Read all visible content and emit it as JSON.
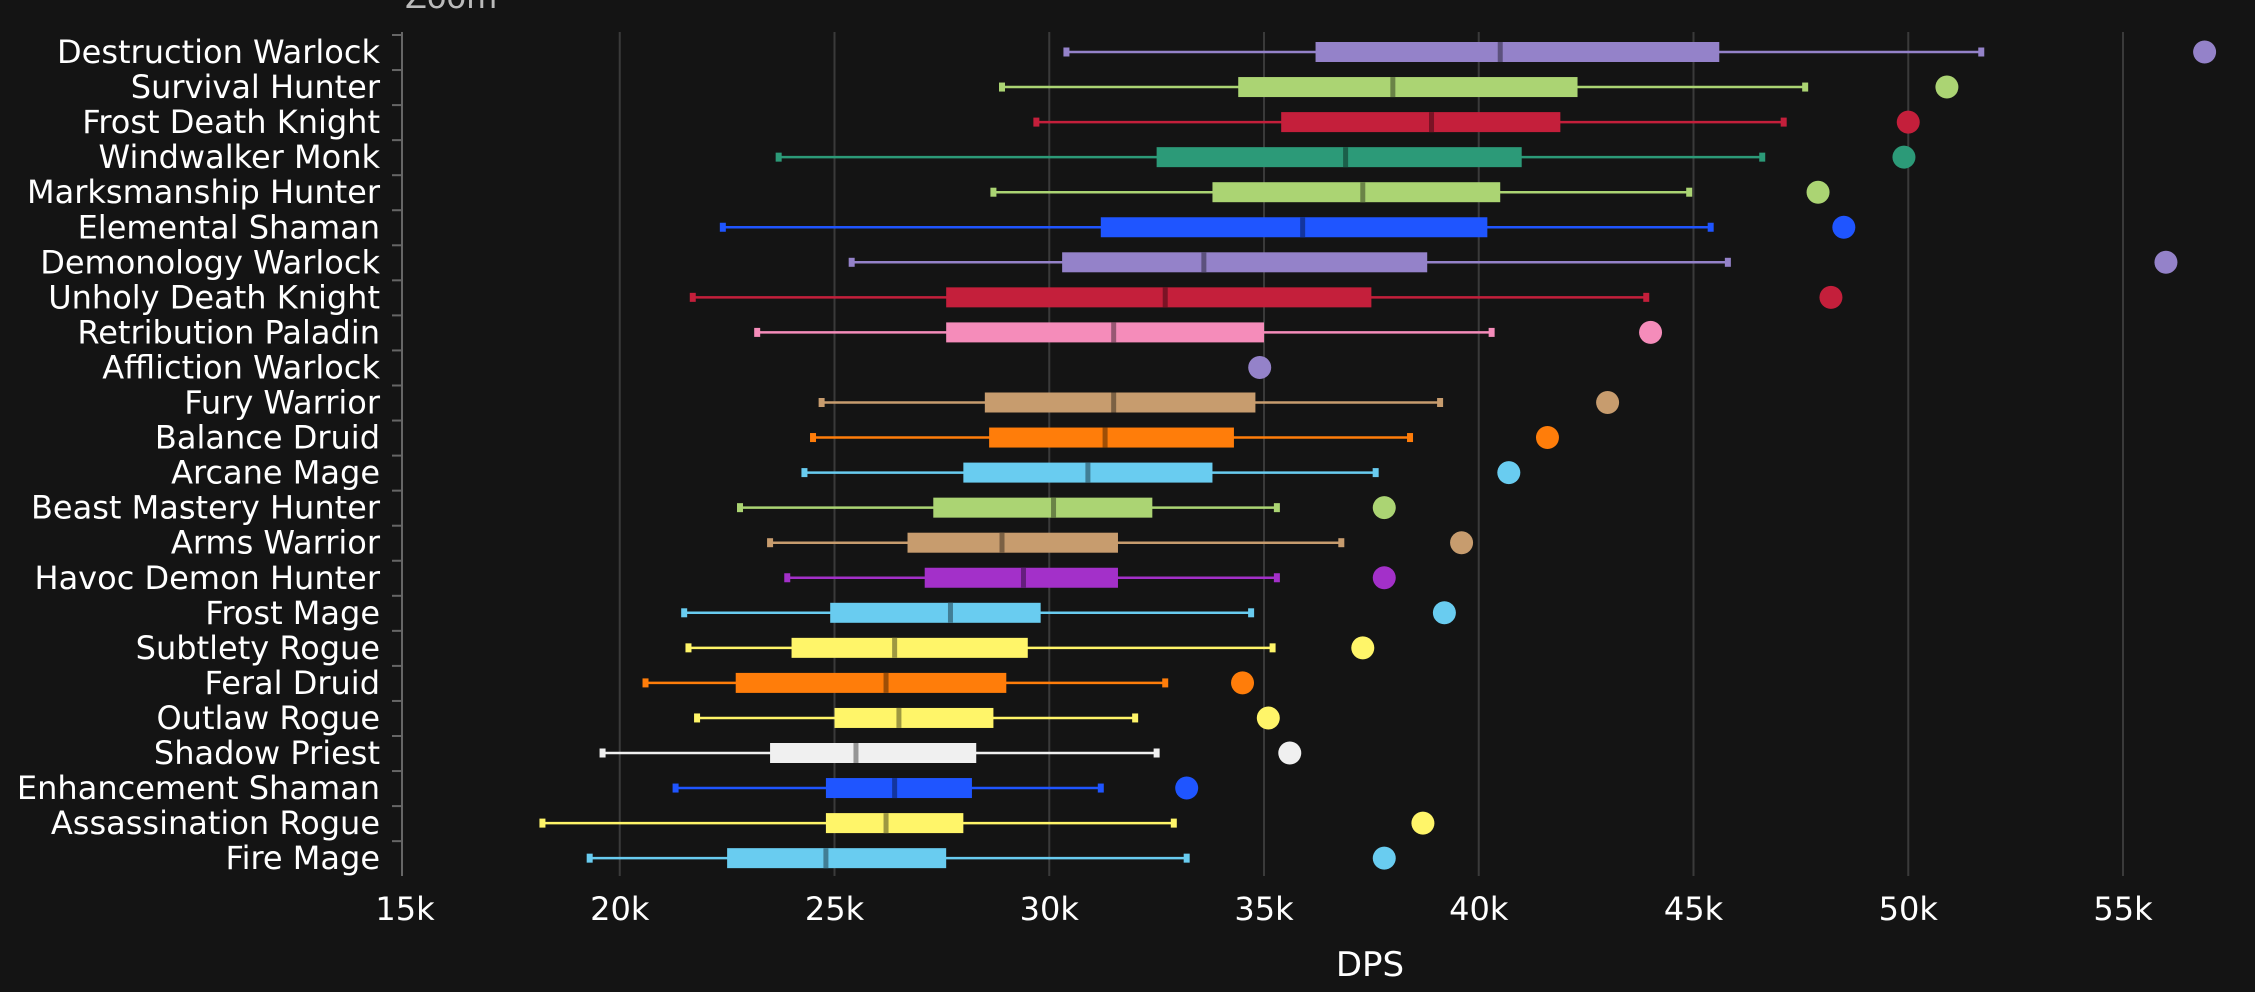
{
  "zoom_label": "Zoom",
  "chart_data": {
    "type": "boxplot",
    "xlabel": "DPS",
    "xlim": [
      15000,
      57000
    ],
    "xticks": [
      15000,
      20000,
      25000,
      30000,
      35000,
      40000,
      45000,
      50000,
      55000
    ],
    "xtick_labels": [
      "15k",
      "20k",
      "25k",
      "30k",
      "35k",
      "40k",
      "45k",
      "50k",
      "55k"
    ],
    "grid": "vertical",
    "series": [
      {
        "name": "Destruction Warlock",
        "color": "#9482c9",
        "min": 30400,
        "q1": 36200,
        "median": 40500,
        "q3": 45600,
        "max": 51700,
        "top": 56900
      },
      {
        "name": "Survival Hunter",
        "color": "#abd473",
        "min": 28900,
        "q1": 34400,
        "median": 38000,
        "q3": 42300,
        "max": 47600,
        "top": 50900
      },
      {
        "name": "Frost Death Knight",
        "color": "#c41f3b",
        "min": 29700,
        "q1": 35400,
        "median": 38900,
        "q3": 41900,
        "max": 47100,
        "top": 50000
      },
      {
        "name": "Windwalker Monk",
        "color": "#2c9a78",
        "min": 23700,
        "q1": 32500,
        "median": 36900,
        "q3": 41000,
        "max": 46600,
        "top": 49900
      },
      {
        "name": "Marksmanship Hunter",
        "color": "#abd473",
        "min": 28700,
        "q1": 33800,
        "median": 37300,
        "q3": 40500,
        "max": 44900,
        "top": 47900
      },
      {
        "name": "Elemental Shaman",
        "color": "#1f55ff",
        "min": 22400,
        "q1": 31200,
        "median": 35900,
        "q3": 40200,
        "max": 45400,
        "top": 48500
      },
      {
        "name": "Demonology Warlock",
        "color": "#9482c9",
        "min": 25400,
        "q1": 30300,
        "median": 33600,
        "q3": 38800,
        "max": 45800,
        "top": 56000
      },
      {
        "name": "Unholy Death Knight",
        "color": "#c41f3b",
        "min": 21700,
        "q1": 27600,
        "median": 32700,
        "q3": 37500,
        "max": 43900,
        "top": 48200
      },
      {
        "name": "Retribution Paladin",
        "color": "#f58cba",
        "min": 23200,
        "q1": 27600,
        "median": 31500,
        "q3": 35000,
        "max": 40300,
        "top": 44000
      },
      {
        "name": "Affliction Warlock",
        "color": "#9482c9",
        "top": 34900
      },
      {
        "name": "Fury Warrior",
        "color": "#c79c6e",
        "min": 24700,
        "q1": 28500,
        "median": 31500,
        "q3": 34800,
        "max": 39100,
        "top": 43000
      },
      {
        "name": "Balance Druid",
        "color": "#ff7d0a",
        "min": 24500,
        "q1": 28600,
        "median": 31300,
        "q3": 34300,
        "max": 38400,
        "top": 41600
      },
      {
        "name": "Arcane Mage",
        "color": "#69ccf0",
        "min": 24300,
        "q1": 28000,
        "median": 30900,
        "q3": 33800,
        "max": 37600,
        "top": 40700
      },
      {
        "name": "Beast Mastery Hunter",
        "color": "#abd473",
        "min": 22800,
        "q1": 27300,
        "median": 30100,
        "q3": 32400,
        "max": 35300,
        "top": 37800
      },
      {
        "name": "Arms Warrior",
        "color": "#c79c6e",
        "min": 23500,
        "q1": 26700,
        "median": 28900,
        "q3": 31600,
        "max": 36800,
        "top": 39600
      },
      {
        "name": "Havoc Demon Hunter",
        "color": "#a330c9",
        "min": 23900,
        "q1": 27100,
        "median": 29400,
        "q3": 31600,
        "max": 35300,
        "top": 37800
      },
      {
        "name": "Frost Mage",
        "color": "#69ccf0",
        "min": 21500,
        "q1": 24900,
        "median": 27700,
        "q3": 29800,
        "max": 34700,
        "top": 39200
      },
      {
        "name": "Subtlety Rogue",
        "color": "#fff569",
        "min": 21600,
        "q1": 24000,
        "median": 26400,
        "q3": 29500,
        "max": 35200,
        "top": 37300
      },
      {
        "name": "Feral Druid",
        "color": "#ff7d0a",
        "min": 20600,
        "q1": 22700,
        "median": 26200,
        "q3": 29000,
        "max": 32700,
        "top": 34500
      },
      {
        "name": "Outlaw Rogue",
        "color": "#fff569",
        "min": 21800,
        "q1": 25000,
        "median": 26500,
        "q3": 28700,
        "max": 32000,
        "top": 35100
      },
      {
        "name": "Shadow Priest",
        "color": "#f0f0f0",
        "min": 19600,
        "q1": 23500,
        "median": 25500,
        "q3": 28300,
        "max": 32500,
        "top": 35600
      },
      {
        "name": "Enhancement Shaman",
        "color": "#1f55ff",
        "min": 21300,
        "q1": 24800,
        "median": 26400,
        "q3": 28200,
        "max": 31200,
        "top": 33200
      },
      {
        "name": "Assassination Rogue",
        "color": "#fff569",
        "min": 18200,
        "q1": 24800,
        "median": 26200,
        "q3": 28000,
        "max": 32900,
        "top": 38700
      },
      {
        "name": "Fire Mage",
        "color": "#69ccf0",
        "min": 19300,
        "q1": 22500,
        "median": 24800,
        "q3": 27600,
        "max": 33200,
        "top": 37800
      }
    ]
  }
}
